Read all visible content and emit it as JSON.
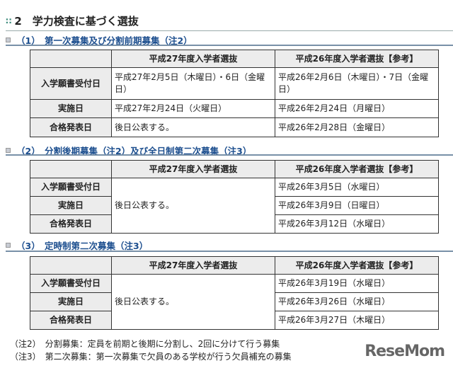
{
  "title": "2　学力検査に基づく選抜",
  "sections": [
    {
      "heading": "（1）　第一次募集及び分割前期募集（注2）",
      "headers": [
        "",
        "平成27年度入学者選抜",
        "平成26年度入学者選抜【参考】"
      ],
      "rows": [
        {
          "label": "入学願書受付日",
          "h27": "平成27年2月5日（木曜日）・6日（金曜日）",
          "h26": "平成26年2月6日（木曜日）・7日（金曜日）"
        },
        {
          "label": "実施日",
          "h27": "平成27年2月24日（火曜日）",
          "h26": "平成26年2月24日（月曜日）"
        },
        {
          "label": "合格発表日",
          "h27": "後日公表する。",
          "h26": "平成26年2月28日（金曜日）"
        }
      ]
    },
    {
      "heading": "（2）　分割後期募集（注2）及び全日制第二次募集（注3）",
      "headers": [
        "",
        "平成27年度入学者選抜",
        "平成26年度入学者選抜【参考】"
      ],
      "h27": "後日公表する。",
      "rows": [
        {
          "label": "入学願書受付日",
          "h26": "平成26年3月5日（水曜日）"
        },
        {
          "label": "実施日",
          "h26": "平成26年3月9日（日曜日）"
        },
        {
          "label": "合格発表日",
          "h26": "平成26年3月12日（水曜日）"
        }
      ]
    },
    {
      "heading": "（3）　定時制第二次募集（注3）",
      "headers": [
        "",
        "平成27年度入学者選抜",
        "平成26年度入学者選抜【参考】"
      ],
      "h27": "後日公表する。",
      "rows": [
        {
          "label": "入学願書受付日",
          "h26": "平成26年3月19日（水曜日）"
        },
        {
          "label": "実施日",
          "h26": "平成26年3月26日（水曜日）"
        },
        {
          "label": "合格発表日",
          "h26": "平成26年3月27日（木曜日）"
        }
      ]
    }
  ],
  "notes": [
    "（注2）　分割募集：定員を前期と後期に分割し、2回に分けて行う募集",
    "（注3）　第二次募集：第一次募集で欠員のある学校が行う欠員補充の募集"
  ],
  "logo": "ReseMom"
}
